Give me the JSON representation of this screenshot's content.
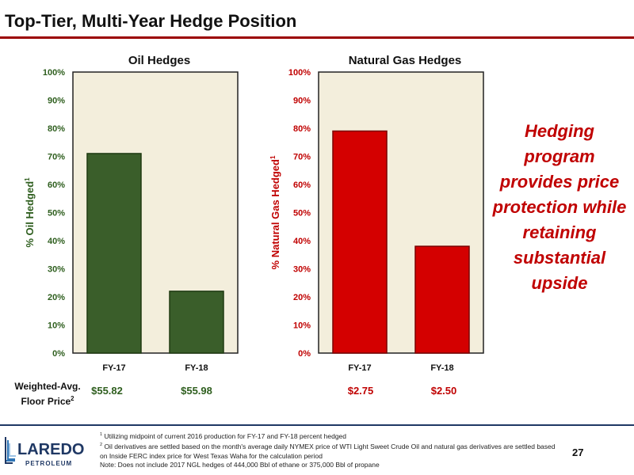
{
  "header": {
    "title": "Top-Tier, Multi-Year Hedge Position"
  },
  "chart_data": [
    {
      "type": "bar",
      "title": "Oil Hedges",
      "categories": [
        "FY-17",
        "FY-18"
      ],
      "values": [
        71,
        22
      ],
      "ylabel": "% Oil Hedged",
      "ylabel_sup": "1",
      "ylim": [
        0,
        100
      ],
      "yticks": [
        "0%",
        "10%",
        "20%",
        "30%",
        "40%",
        "50%",
        "60%",
        "70%",
        "80%",
        "90%",
        "100%"
      ],
      "axis_color": "#2e5e1e",
      "bar_color": "#3a5e2a",
      "bar_stroke": "#1f3a12",
      "plot_bg": "#f3eedc",
      "floor_prices": [
        "$55.82",
        "$55.98"
      ],
      "floor_color": "#2e5e1e"
    },
    {
      "type": "bar",
      "title": "Natural Gas Hedges",
      "categories": [
        "FY-17",
        "FY-18"
      ],
      "values": [
        79,
        38
      ],
      "ylabel": "% Natural Gas Hedged",
      "ylabel_sup": "1",
      "ylim": [
        0,
        100
      ],
      "yticks": [
        "0%",
        "10%",
        "20%",
        "30%",
        "40%",
        "50%",
        "60%",
        "70%",
        "80%",
        "90%",
        "100%"
      ],
      "axis_color": "#c00000",
      "bar_color": "#d40000",
      "bar_stroke": "#7a0000",
      "plot_bg": "#f3eedc",
      "floor_prices": [
        "$2.75",
        "$2.50"
      ],
      "floor_color": "#c00000"
    }
  ],
  "side_text": "Hedging program provides price protection while retaining substantial upside",
  "floor_label": {
    "line1": "Weighted-Avg.",
    "line2": "Floor Price",
    "sup": "2"
  },
  "footnotes": [
    {
      "sup": "1",
      "text": " Utilizing midpoint of current 2016 production for FY-17 and FY-18 percent hedged"
    },
    {
      "sup": "2",
      "text": " Oil derivatives are settled based on the month's average daily NYMEX price of WTI Light Sweet Crude Oil and natural gas derivatives are settled based on Inside FERC index price for West Texas Waha for the calculation period"
    },
    {
      "sup": "",
      "text": "Note: Does not include 2017 NGL hedges of 444,000 Bbl of ethane or 375,000 Bbl of propane"
    }
  ],
  "logo": {
    "name": "LAREDO",
    "sub": "PETROLEUM"
  },
  "page_number": "27",
  "colors": {
    "accent": "#9b0000",
    "brand": "#1f3864",
    "side_text": "#c00000"
  }
}
